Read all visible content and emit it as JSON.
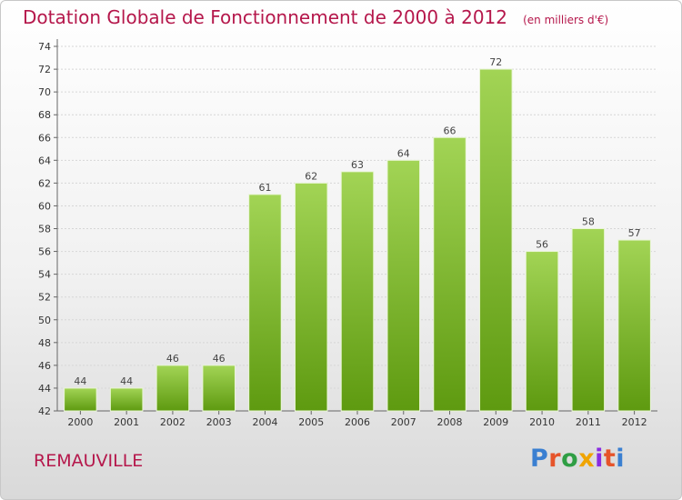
{
  "title": "Dotation Globale de Fonctionnement de 2000 à 2012",
  "unit": "(en milliers d'€)",
  "commune": "REMAUVILLE",
  "logo": {
    "text": "Proxiti",
    "colors": [
      "#3a7fd1",
      "#e6542a",
      "#2f9e44",
      "#f0a400",
      "#8a2be2",
      "#e6542a",
      "#3a7fd1"
    ]
  },
  "colors": {
    "accent": "#b5174b",
    "bar_light": "#9ed14e",
    "bar_dark": "#5e9a10"
  },
  "chart_data": {
    "type": "bar",
    "title": "Dotation Globale de Fonctionnement de 2000 à 2012",
    "categories": [
      "2000",
      "2001",
      "2002",
      "2003",
      "2004",
      "2005",
      "2006",
      "2007",
      "2008",
      "2009",
      "2010",
      "2011",
      "2012"
    ],
    "values": [
      44,
      44,
      46,
      46,
      61,
      62,
      63,
      64,
      66,
      72,
      56,
      58,
      57
    ],
    "ylim": [
      42,
      74
    ],
    "yticks": [
      42,
      44,
      46,
      48,
      50,
      52,
      54,
      56,
      58,
      60,
      62,
      64,
      66,
      68,
      70,
      72,
      74
    ],
    "grid": true,
    "xlabel": "",
    "ylabel": ""
  }
}
